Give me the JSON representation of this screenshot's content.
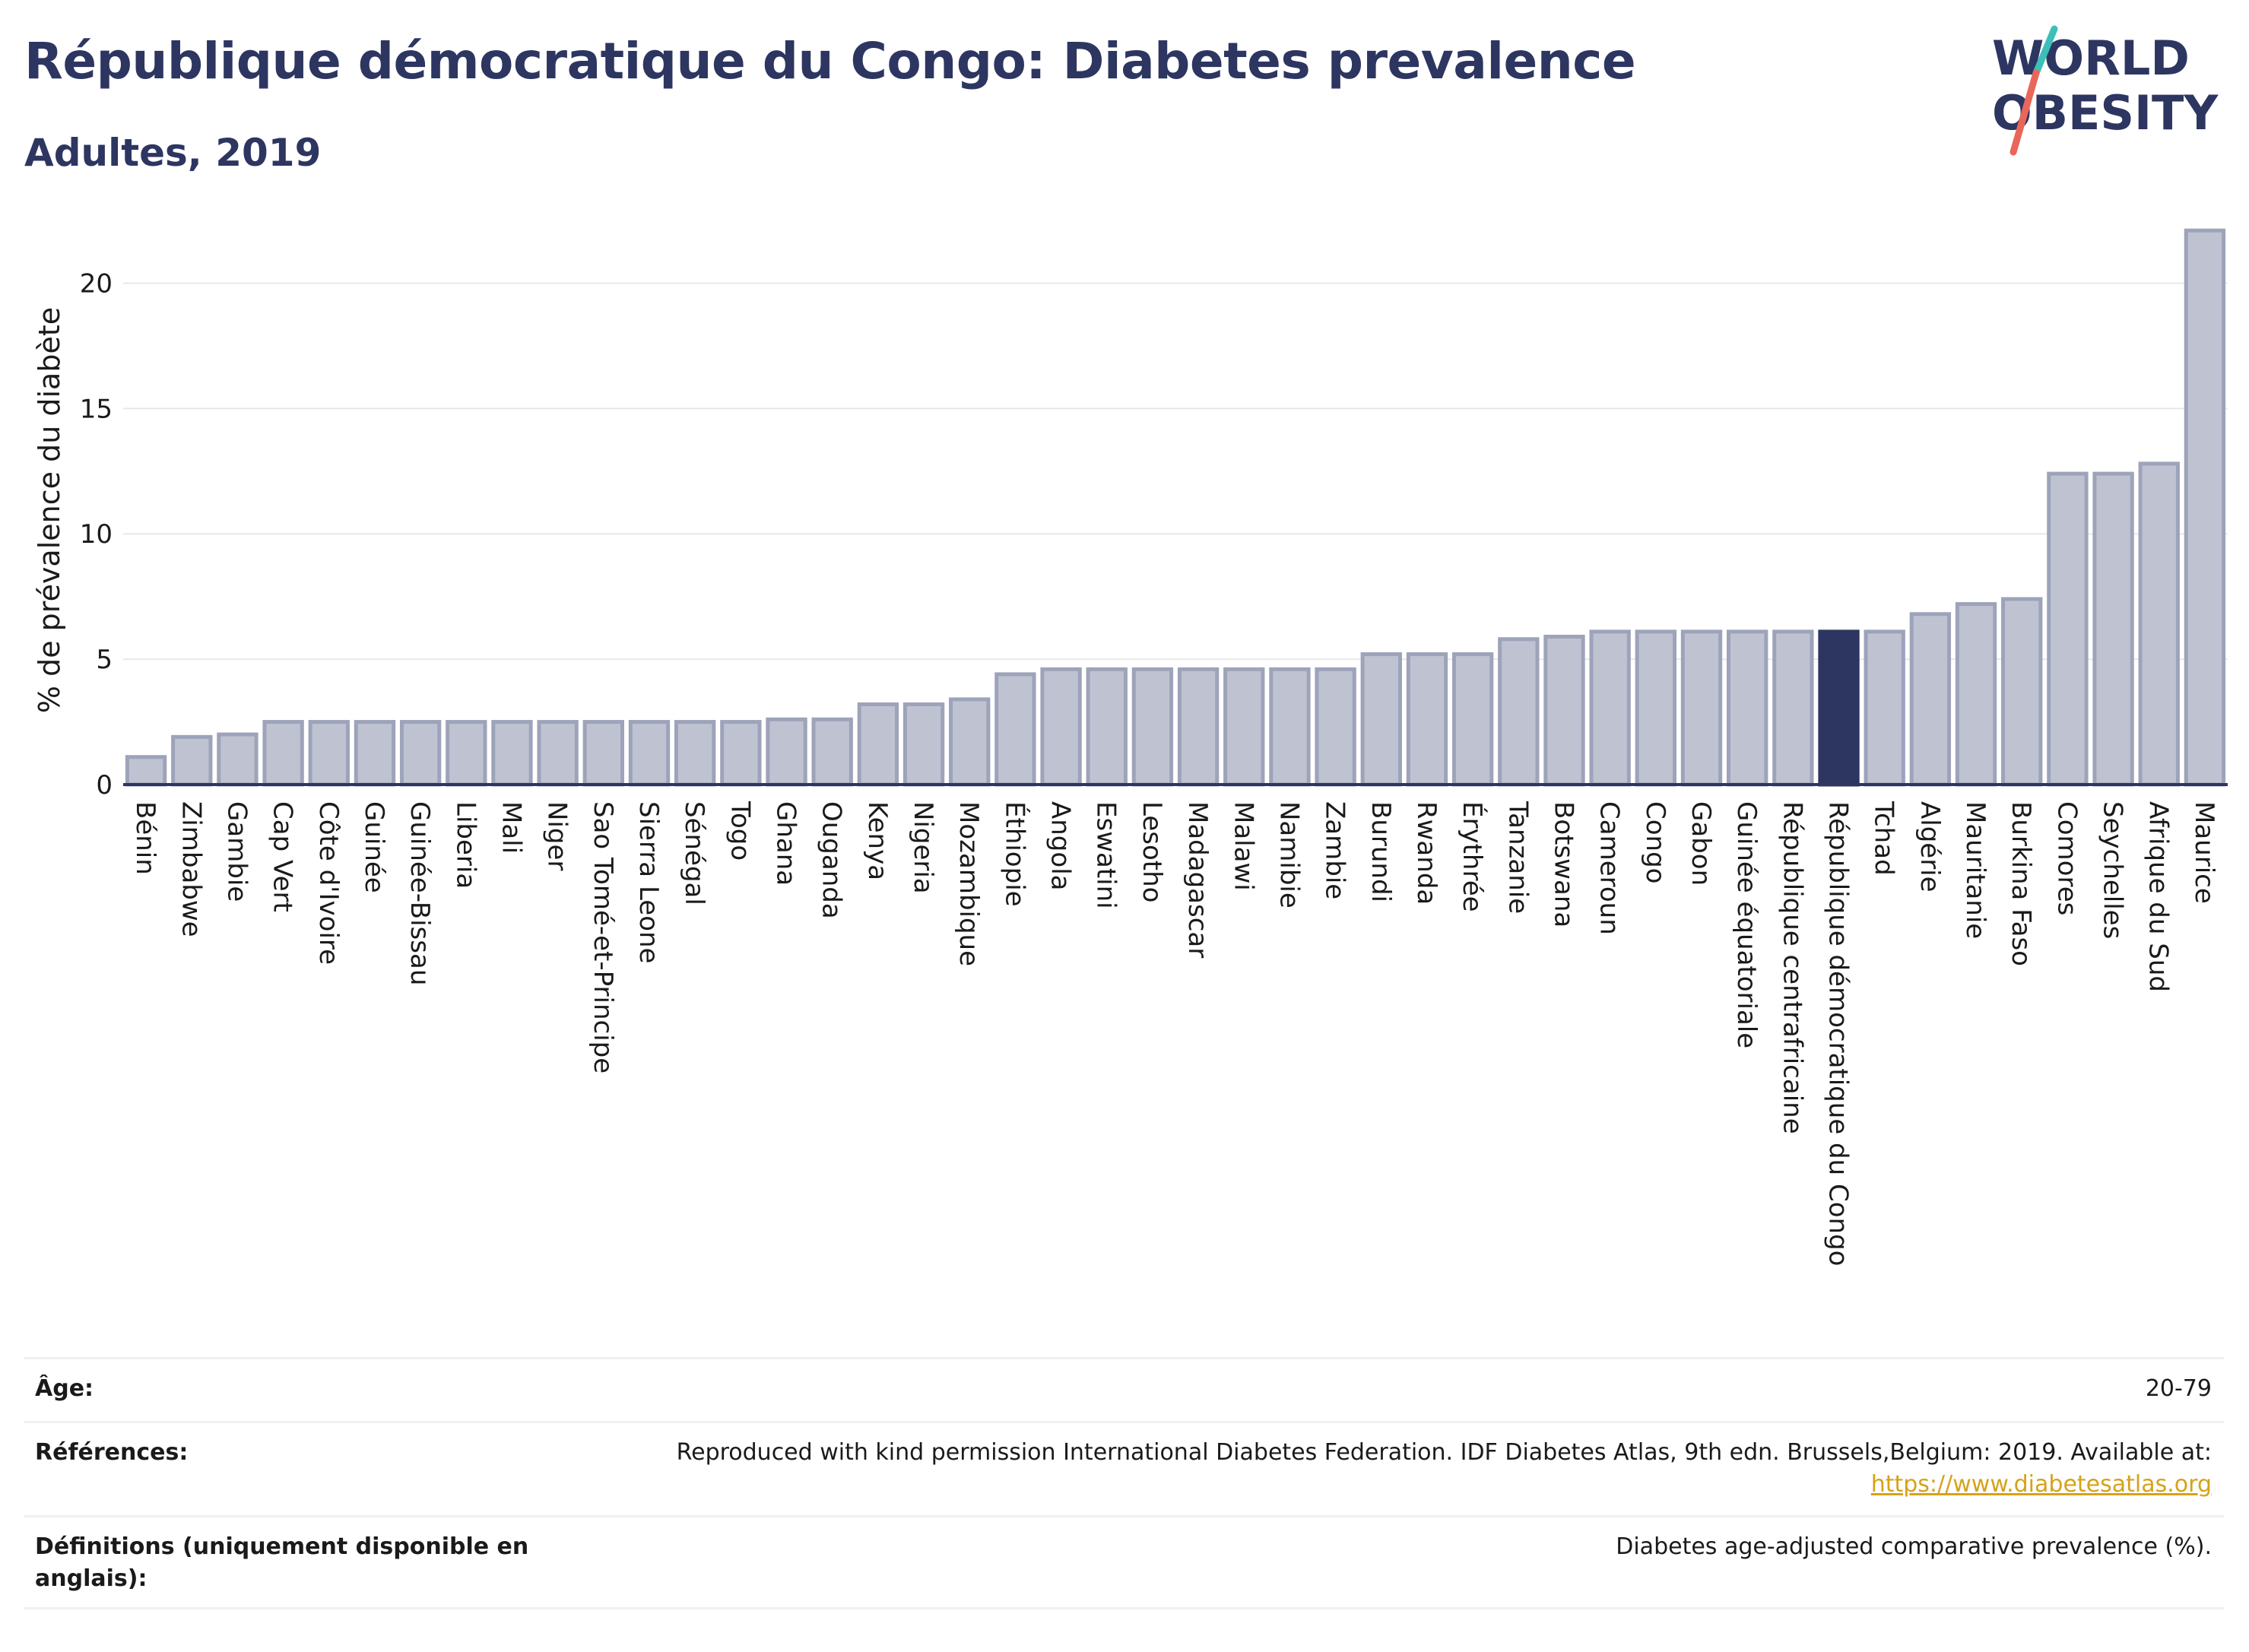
{
  "header": {
    "title": "République démocratique du Congo: Diabetes prevalence",
    "subtitle": "Adultes, 2019"
  },
  "logo": {
    "line1": "WORLD",
    "line2": "OBESITY",
    "colors": {
      "text": "#2d3561",
      "teal": "#3bbfb8",
      "coral": "#e8675a"
    }
  },
  "colors": {
    "bar_default": "#bfc3d1",
    "bar_default_stroke": "#9da3b9",
    "bar_highlight": "#2d3561",
    "axis": "#2d3561",
    "grid": "#e6e8ec"
  },
  "chart_data": {
    "type": "bar",
    "ylabel": "% de prévalence du diabète",
    "ylim": [
      0,
      22.5
    ],
    "yticks": [
      0,
      5,
      10,
      15,
      20
    ],
    "grid": true,
    "highlight": "République démocratique du Congo",
    "categories": [
      "Bénin",
      "Zimbabwe",
      "Gambie",
      "Cap Vert",
      "Côte d'Ivoire",
      "Guinée",
      "Guinée-Bissau",
      "Liberia",
      "Mali",
      "Niger",
      "Sao Tomé-et-Principe",
      "Sierra Leone",
      "Sénégal",
      "Togo",
      "Ghana",
      "Ouganda",
      "Kenya",
      "Nigeria",
      "Mozambique",
      "Éthiopie",
      "Angola",
      "Eswatini",
      "Lesotho",
      "Madagascar",
      "Malawi",
      "Namibie",
      "Zambie",
      "Burundi",
      "Rwanda",
      "Érythrée",
      "Tanzanie",
      "Botswana",
      "Cameroun",
      "Congo",
      "Gabon",
      "Guinée équatoriale",
      "République centrafricaine",
      "République démocratique du Congo",
      "Tchad",
      "Algérie",
      "Mauritanie",
      "Burkina Faso",
      "Comores",
      "Seychelles",
      "Afrique du Sud",
      "Maurice"
    ],
    "values": [
      1.1,
      1.9,
      2.0,
      2.5,
      2.5,
      2.5,
      2.5,
      2.5,
      2.5,
      2.5,
      2.5,
      2.5,
      2.5,
      2.5,
      2.6,
      2.6,
      3.2,
      3.2,
      3.4,
      4.4,
      4.6,
      4.6,
      4.6,
      4.6,
      4.6,
      4.6,
      4.6,
      5.2,
      5.2,
      5.2,
      5.8,
      5.9,
      6.1,
      6.1,
      6.1,
      6.1,
      6.1,
      6.1,
      6.1,
      6.8,
      7.2,
      7.4,
      12.4,
      12.4,
      12.8,
      22.1
    ]
  },
  "meta": {
    "age_label": "Âge:",
    "age_value": "20-79",
    "references_label": "Références:",
    "references_text": "Reproduced with kind permission International Diabetes Federation. IDF Diabetes Atlas, 9th edn. Brussels,Belgium: 2019. Available at:",
    "references_link": "https://www.diabetesatlas.org",
    "definitions_label": "Définitions (uniquement disponible en anglais):",
    "definitions_value": "Diabetes age-adjusted comparative prevalence (%)."
  }
}
